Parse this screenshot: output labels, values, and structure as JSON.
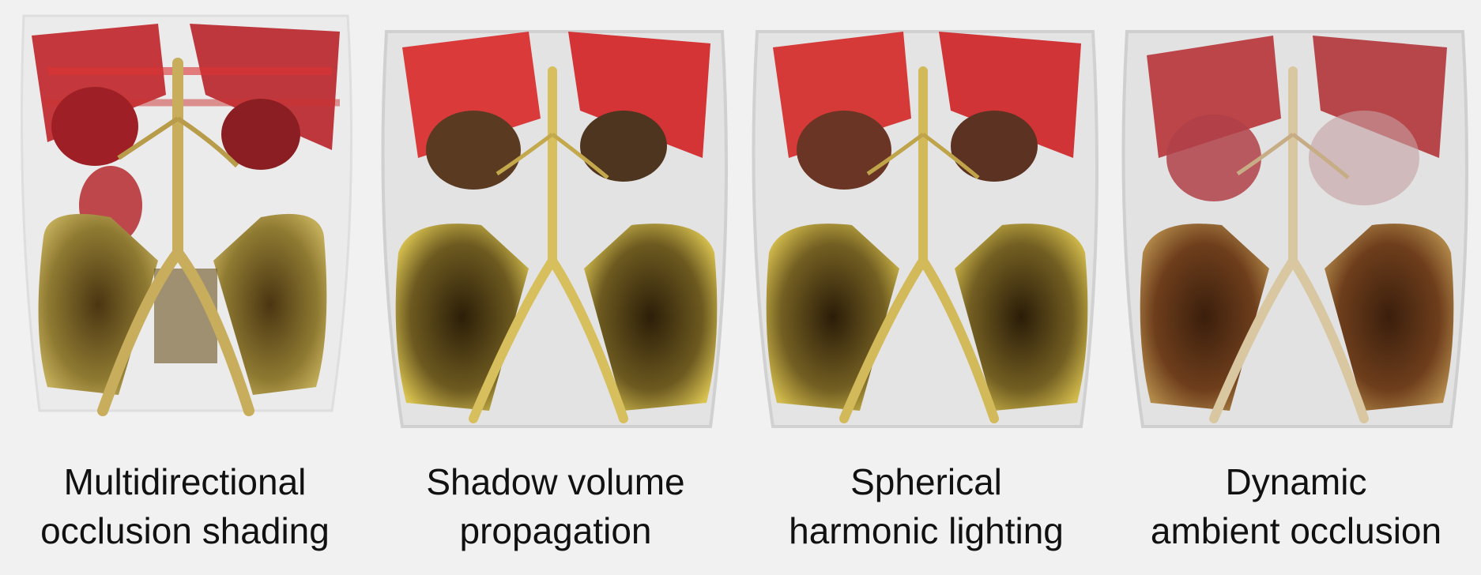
{
  "panels": [
    {
      "caption_line1": "Multidirectional",
      "caption_line2": "occlusion shading"
    },
    {
      "caption_line1": "Shadow volume",
      "caption_line2": "propagation"
    },
    {
      "caption_line1": "Spherical",
      "caption_line2": "harmonic lighting"
    },
    {
      "caption_line1": "Dynamic",
      "caption_line2": "ambient occlusion"
    }
  ],
  "colors": {
    "background": "#f1f1f1",
    "skin_halo": "#e3e3e3",
    "bone": "#b29c4a",
    "bone_dark": "#3a2a10",
    "vessel": "#c9a24a",
    "organ_red": "#c2262b",
    "rib_red": "#d9302f"
  }
}
